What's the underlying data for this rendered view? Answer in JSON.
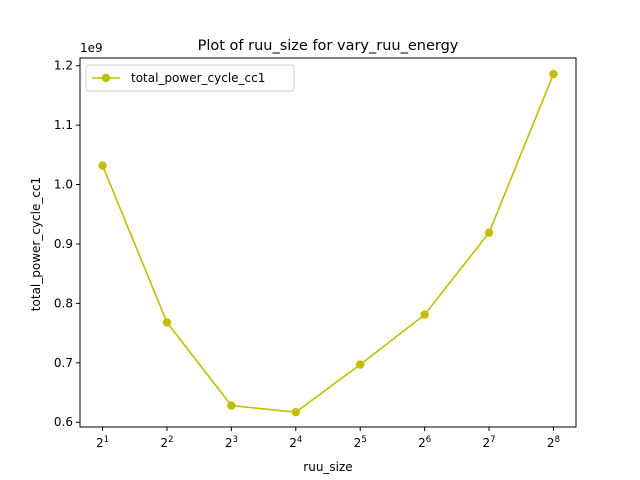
{
  "chart_data": {
    "type": "line",
    "title": "Plot of ruu_size for vary_ruu_energy",
    "xlabel": "ruu_size",
    "ylabel": "total_power_cycle_cc1",
    "y_offset_label": "1e9",
    "x_scale": "log2",
    "x": [
      2,
      4,
      8,
      16,
      32,
      64,
      128,
      256
    ],
    "x_tick_base": "2",
    "x_tick_exponents": [
      "1",
      "2",
      "3",
      "4",
      "5",
      "6",
      "7",
      "8"
    ],
    "y_ticks": [
      "0.6",
      "0.7",
      "0.8",
      "0.9",
      "1.0",
      "1.1",
      "1.2"
    ],
    "y_tick_values": [
      0.6,
      0.7,
      0.8,
      0.9,
      1.0,
      1.1,
      1.2
    ],
    "ylim": [
      0.592,
      1.213
    ],
    "y_unit_multiplier": 1000000000,
    "grid": false,
    "legend_position": "top-left",
    "series": [
      {
        "name": "total_power_cycle_cc1",
        "color": "#bfbf00",
        "marker": "circle",
        "values": [
          1.032,
          0.768,
          0.628,
          0.617,
          0.697,
          0.781,
          0.919,
          1.186
        ]
      }
    ]
  }
}
